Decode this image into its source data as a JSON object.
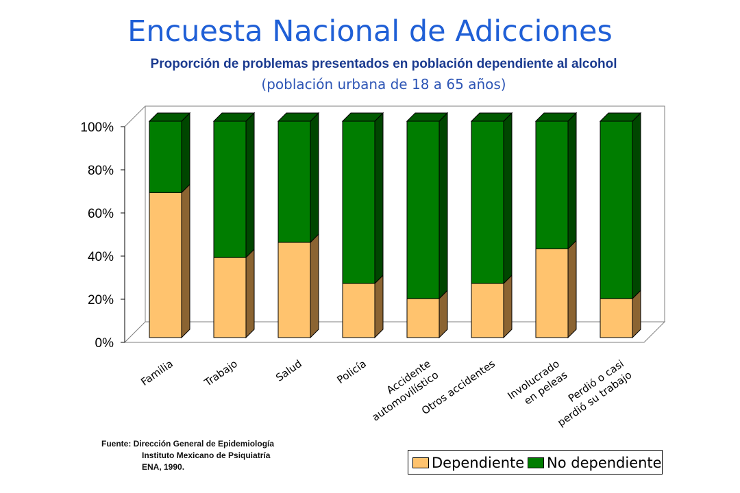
{
  "title": "Encuesta Nacional de Adicciones",
  "subtitle": "Proporción de problemas presentados en  población dependiente al alcohol",
  "subtitle2": "(población urbana de 18 a 65 años)",
  "source": {
    "line1": "Fuente: Dirección General de Epidemiología",
    "line2": "Instituto Mexicano de Psiquiatría",
    "line3": "ENA, 1990."
  },
  "colors": {
    "dependiente": "#ffc36e",
    "dependiente_side": "#8b6432",
    "no_dependiente": "#007d00",
    "no_dependiente_top": "#005a00",
    "no_dependiente_side": "#004600"
  },
  "chart_data": {
    "type": "bar",
    "stacked": true,
    "three_d": true,
    "categories": [
      [
        "Familia"
      ],
      [
        "Trabajo"
      ],
      [
        "Salud"
      ],
      [
        "Policía"
      ],
      [
        "Accidente",
        "automovilístico"
      ],
      [
        "Otros accidentes"
      ],
      [
        "Involucrado",
        "en peleas"
      ],
      [
        "Perdió o casi",
        "perdió su trabajo"
      ]
    ],
    "series": [
      {
        "name": "Dependiente",
        "values": [
          67,
          37,
          44,
          25,
          18,
          25,
          41,
          18
        ]
      },
      {
        "name": "No dependiente",
        "values": [
          33,
          63,
          56,
          75,
          82,
          75,
          59,
          82
        ]
      }
    ],
    "y_ticks": [
      "0%",
      "20%",
      "40%",
      "60%",
      "80%",
      "100%"
    ],
    "ylim": [
      0,
      100
    ],
    "legend_position": "bottom-right",
    "grid": false
  }
}
